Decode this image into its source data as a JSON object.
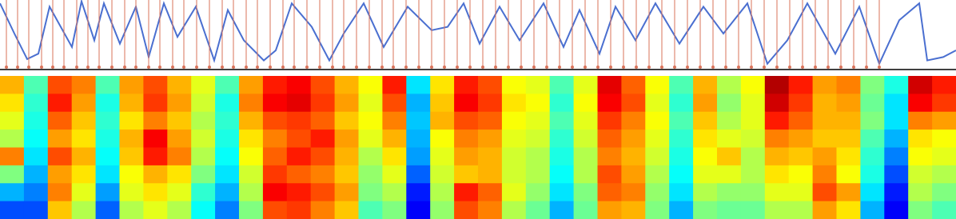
{
  "chart_data": [
    {
      "type": "line",
      "xlim": [
        0,
        1196
      ],
      "ylim": [
        0,
        1
      ],
      "series": [
        {
          "kind": "line",
          "color": "#4a6fd0",
          "x": [
            0,
            18,
            34,
            48,
            62,
            90,
            102,
            118,
            130,
            150,
            170,
            186,
            205,
            222,
            245,
            268,
            285,
            305,
            330,
            345,
            365,
            390,
            412,
            430,
            455,
            480,
            510,
            540,
            560,
            580,
            600,
            625,
            650,
            680,
            705,
            725,
            750,
            770,
            795,
            820,
            850,
            880,
            905,
            935,
            960,
            985,
            1010,
            1045,
            1075,
            1100,
            1125,
            1150,
            1160,
            1180,
            1196
          ],
          "values": [
            0.95,
            0.5,
            0.12,
            0.2,
            0.9,
            0.3,
            0.98,
            0.4,
            0.95,
            0.35,
            0.9,
            0.15,
            0.95,
            0.45,
            0.9,
            0.1,
            0.85,
            0.4,
            0.1,
            0.25,
            0.95,
            0.6,
            0.1,
            0.5,
            0.95,
            0.3,
            0.9,
            0.55,
            0.6,
            0.95,
            0.35,
            0.9,
            0.4,
            0.95,
            0.3,
            0.85,
            0.2,
            0.9,
            0.4,
            0.95,
            0.35,
            0.9,
            0.5,
            0.95,
            0.05,
            0.4,
            0.95,
            0.2,
            0.9,
            0.05,
            0.7,
            0.95,
            0.1,
            0.15,
            0.25
          ]
        },
        {
          "kind": "stem",
          "color": "#d9735a",
          "x": [
            8,
            22,
            36,
            52,
            66,
            80,
            96,
            110,
            124,
            140,
            156,
            170,
            186,
            200,
            216,
            230,
            246,
            262,
            278,
            292,
            308,
            322,
            338,
            354,
            368,
            384,
            400,
            416,
            430,
            446,
            462,
            478,
            492,
            508,
            524,
            540,
            556,
            572,
            588,
            604,
            620,
            636,
            652,
            668,
            684,
            700,
            716,
            732,
            748,
            764,
            780,
            796,
            812,
            828,
            844,
            860,
            876,
            892,
            908,
            924,
            940,
            956,
            972,
            988,
            1004,
            1020,
            1036,
            1052,
            1068,
            1084,
            1100
          ],
          "values": [
            1,
            1,
            1,
            1,
            1,
            1,
            1,
            1,
            1,
            1,
            1,
            1,
            1,
            1,
            1,
            1,
            1,
            1,
            1,
            1,
            1,
            1,
            1,
            1,
            1,
            1,
            1,
            1,
            1,
            1,
            1,
            1,
            1,
            1,
            1,
            1,
            1,
            1,
            1,
            1,
            1,
            1,
            1,
            1,
            1,
            1,
            1,
            1,
            1,
            1,
            1,
            1,
            1,
            1,
            1,
            1,
            1,
            1,
            1,
            1,
            1,
            1,
            1,
            1,
            1,
            1,
            1,
            1,
            1,
            1,
            1
          ]
        }
      ]
    },
    {
      "type": "heatmap",
      "colormap": "jet",
      "zlim": [
        0,
        1
      ],
      "z": [
        [
          0.7,
          0.45,
          0.8,
          0.75,
          0.45,
          0.72,
          0.8,
          0.7,
          0.6,
          0.45,
          0.72,
          0.85,
          0.88,
          0.8,
          0.7,
          0.62,
          0.85,
          0.35,
          0.65,
          0.85,
          0.8,
          0.62,
          0.6,
          0.45,
          0.6,
          0.9,
          0.78,
          0.62,
          0.45,
          0.7,
          0.55,
          0.62,
          0.95,
          0.85,
          0.72,
          0.75,
          0.5,
          0.4,
          0.92,
          0.85
        ],
        [
          0.65,
          0.42,
          0.85,
          0.72,
          0.4,
          0.7,
          0.82,
          0.72,
          0.58,
          0.4,
          0.75,
          0.88,
          0.9,
          0.82,
          0.72,
          0.6,
          0.8,
          0.3,
          0.68,
          0.88,
          0.82,
          0.65,
          0.62,
          0.42,
          0.62,
          0.88,
          0.8,
          0.6,
          0.42,
          0.72,
          0.52,
          0.6,
          0.92,
          0.82,
          0.7,
          0.72,
          0.48,
          0.35,
          0.88,
          0.82
        ],
        [
          0.6,
          0.4,
          0.78,
          0.68,
          0.42,
          0.65,
          0.75,
          0.68,
          0.55,
          0.42,
          0.7,
          0.8,
          0.82,
          0.78,
          0.68,
          0.62,
          0.75,
          0.32,
          0.7,
          0.8,
          0.78,
          0.62,
          0.6,
          0.45,
          0.6,
          0.82,
          0.75,
          0.62,
          0.45,
          0.68,
          0.55,
          0.6,
          0.85,
          0.78,
          0.7,
          0.7,
          0.5,
          0.35,
          0.75,
          0.72
        ],
        [
          0.55,
          0.38,
          0.72,
          0.65,
          0.4,
          0.7,
          0.88,
          0.72,
          0.58,
          0.4,
          0.65,
          0.75,
          0.8,
          0.85,
          0.72,
          0.6,
          0.7,
          0.3,
          0.62,
          0.75,
          0.72,
          0.6,
          0.58,
          0.42,
          0.58,
          0.78,
          0.72,
          0.6,
          0.42,
          0.65,
          0.6,
          0.58,
          0.75,
          0.72,
          0.68,
          0.68,
          0.45,
          0.3,
          0.65,
          0.62
        ],
        [
          0.75,
          0.35,
          0.8,
          0.7,
          0.38,
          0.68,
          0.85,
          0.75,
          0.55,
          0.38,
          0.62,
          0.78,
          0.85,
          0.8,
          0.7,
          0.55,
          0.65,
          0.28,
          0.6,
          0.72,
          0.7,
          0.58,
          0.55,
          0.4,
          0.55,
          0.75,
          0.7,
          0.58,
          0.4,
          0.62,
          0.68,
          0.55,
          0.7,
          0.68,
          0.72,
          0.65,
          0.42,
          0.25,
          0.62,
          0.6
        ],
        [
          0.5,
          0.3,
          0.72,
          0.65,
          0.35,
          0.62,
          0.7,
          0.65,
          0.5,
          0.35,
          0.58,
          0.82,
          0.78,
          0.75,
          0.68,
          0.52,
          0.6,
          0.22,
          0.58,
          0.68,
          0.7,
          0.58,
          0.55,
          0.38,
          0.55,
          0.8,
          0.72,
          0.55,
          0.38,
          0.6,
          0.6,
          0.55,
          0.65,
          0.62,
          0.75,
          0.62,
          0.4,
          0.2,
          0.58,
          0.55
        ],
        [
          0.3,
          0.25,
          0.75,
          0.6,
          0.28,
          0.6,
          0.65,
          0.6,
          0.42,
          0.3,
          0.55,
          0.88,
          0.85,
          0.8,
          0.72,
          0.5,
          0.55,
          0.15,
          0.55,
          0.85,
          0.78,
          0.6,
          0.52,
          0.35,
          0.5,
          0.78,
          0.75,
          0.52,
          0.35,
          0.55,
          0.52,
          0.52,
          0.6,
          0.6,
          0.8,
          0.72,
          0.35,
          0.15,
          0.55,
          0.5
        ],
        [
          0.2,
          0.2,
          0.68,
          0.55,
          0.22,
          0.55,
          0.6,
          0.55,
          0.38,
          0.25,
          0.5,
          0.8,
          0.82,
          0.75,
          0.68,
          0.45,
          0.5,
          0.12,
          0.52,
          0.8,
          0.75,
          0.55,
          0.48,
          0.3,
          0.48,
          0.72,
          0.7,
          0.5,
          0.3,
          0.5,
          0.48,
          0.48,
          0.55,
          0.55,
          0.72,
          0.65,
          0.3,
          0.12,
          0.5,
          0.45
        ]
      ]
    }
  ]
}
